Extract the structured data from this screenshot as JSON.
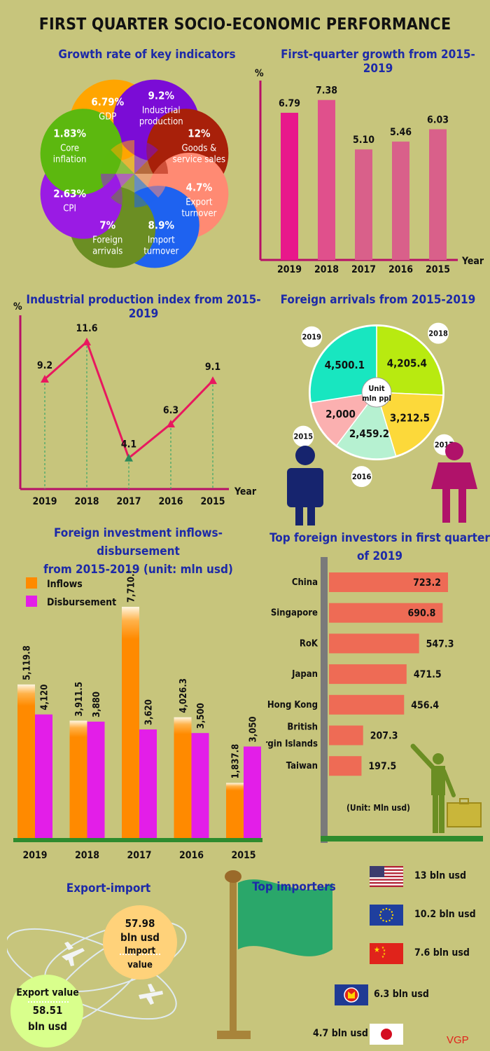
{
  "title": "FIRST QUARTER SOCIO-ECONOMIC PERFORMANCE",
  "colors": {
    "background": "#c7c57c",
    "heading": "#1d2aa8",
    "inflows": "#ff8a00",
    "disbursement": "#e31ee8",
    "investor_bar": "#ee6b55",
    "line": "#e8185f"
  },
  "chart_data": [
    {
      "type": "pie",
      "title": "Growth rate of key indicators",
      "unit": "%",
      "slices": [
        {
          "value": "6.79%",
          "label": "GDP",
          "color": "#ffa500"
        },
        {
          "value": "9.2%",
          "label": "Industrial production",
          "color": "#7b0cd6"
        },
        {
          "value": "12%",
          "label": "Goods & service sales",
          "color": "#a8200a"
        },
        {
          "value": "4.7%",
          "label": "Export turnover",
          "color": "#ff8a73"
        },
        {
          "value": "8.9%",
          "label": "Import turnover",
          "color": "#1e62f0"
        },
        {
          "value": "7%",
          "label": "Foreign arrivals",
          "color": "#6b8e23"
        },
        {
          "value": "2.63%",
          "label": "CPI",
          "color": "#9a1be4"
        },
        {
          "value": "1.83%",
          "label": "Core inflation",
          "color": "#5cb80f"
        }
      ]
    },
    {
      "type": "bar",
      "title": "First-quarter growth from 2015-2019",
      "ylabel": "%",
      "xlabel": "Year",
      "categories": [
        "2019",
        "2018",
        "2017",
        "2016",
        "2015"
      ],
      "values": [
        6.79,
        7.38,
        5.1,
        5.46,
        6.03
      ],
      "value_labels": [
        "6.79",
        "7.38",
        "5.10",
        "5.46",
        "6.03"
      ],
      "colors": [
        "#e8188b",
        "#e0508c",
        "#d9608a",
        "#d9608a",
        "#d9608a"
      ]
    },
    {
      "type": "line",
      "title": "Industrial production index from 2015-2019",
      "ylabel": "%",
      "xlabel": "Year",
      "categories": [
        "2019",
        "2018",
        "2017",
        "2016",
        "2015"
      ],
      "values": [
        9.2,
        11.6,
        4.1,
        6.3,
        9.1
      ],
      "value_labels": [
        "9.2",
        "11.6",
        "4.1",
        "6.3",
        "9.1"
      ]
    },
    {
      "type": "pie",
      "title": "Foreign arrivals from 2015-2019",
      "center_label": [
        "Unit",
        "mln ppl"
      ],
      "slices": [
        {
          "year": "2018",
          "value": 4205.4,
          "label": "4,205.4",
          "color": "#b8ea10"
        },
        {
          "year": "2017",
          "value": 3212.5,
          "label": "3,212.5",
          "color": "#fcd93a"
        },
        {
          "year": "2016",
          "value": 2459.2,
          "label": "2,459.2",
          "color": "#b6f1d1"
        },
        {
          "year": "2015",
          "value": 2000,
          "label": "2,000",
          "color": "#fbb0b0"
        },
        {
          "year": "2019",
          "value": 4500.1,
          "label": "4,500.1",
          "color": "#18e6c0"
        }
      ]
    },
    {
      "type": "bar",
      "title_lines": [
        "Foreign investment inflows-disbursement",
        "from 2015-2019 (unit: mln usd)"
      ],
      "categories": [
        "2019",
        "2018",
        "2017",
        "2016",
        "2015"
      ],
      "series": [
        {
          "name": "Inflows",
          "values": [
            5119.8,
            3911.5,
            7710.1,
            4026.3,
            1837.8
          ],
          "labels": [
            "5,119.8",
            "3,911.5",
            "7,710.1",
            "4,026.3",
            "1,837.8"
          ]
        },
        {
          "name": "Disbursement",
          "values": [
            4120,
            3880,
            3620,
            3500,
            3050
          ],
          "labels": [
            "4,120",
            "3,880",
            "3,620",
            "3,500",
            "3,050"
          ]
        }
      ]
    },
    {
      "type": "bar",
      "orientation": "horizontal",
      "title_lines": [
        "Top foreign investors in first quarter",
        "of 2019"
      ],
      "unit_note": "(Unit: Mln usd)",
      "categories": [
        "China",
        "Singapore",
        "RoK",
        "Japan",
        "Hong Kong",
        "British Virgin Islands",
        "Taiwan"
      ],
      "category_lines": [
        [
          "China"
        ],
        [
          "Singapore"
        ],
        [
          "RoK"
        ],
        [
          "Japan"
        ],
        [
          "Hong Kong"
        ],
        [
          "British",
          "Virgin Islands"
        ],
        [
          "Taiwan"
        ]
      ],
      "values": [
        723.2,
        690.8,
        547.3,
        471.5,
        456.4,
        207.3,
        197.5
      ],
      "value_labels": [
        "723.2",
        "690.8",
        "547.3",
        "471.5",
        "456.4",
        "207.3",
        "197.5"
      ]
    }
  ],
  "export_import": {
    "title": "Export-import",
    "import_value": "57.98",
    "import_unit": "bln usd",
    "import_label": "Import value",
    "export_label": "Export value",
    "export_value": "58.51",
    "export_unit": "bln usd"
  },
  "top_importers": {
    "title": "Top importers",
    "items": [
      {
        "flag": "usa-flag-icon",
        "value": "13 bln usd"
      },
      {
        "flag": "eu-flag-icon",
        "value": "10.2 bln usd"
      },
      {
        "flag": "china-flag-icon",
        "value": "7.6 bln usd"
      },
      {
        "flag": "asean-flag-icon",
        "value": "6.3 bln usd"
      },
      {
        "flag": "japan-flag-icon",
        "value": "4.7 bln usd"
      }
    ]
  },
  "credit": "VGP"
}
